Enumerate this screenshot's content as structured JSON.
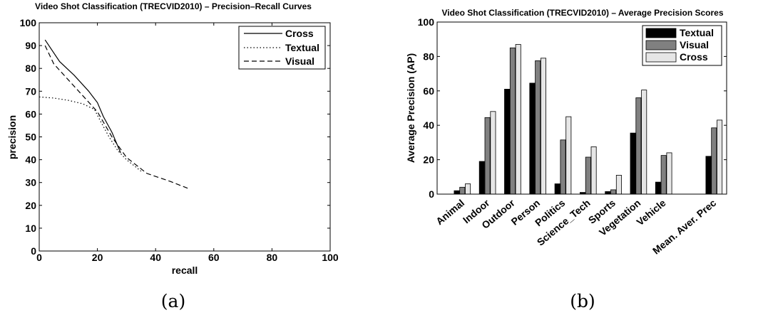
{
  "chart_data": [
    {
      "type": "line",
      "title": "Video Shot Classification (TRECVID2010) – Precision–Recall Curves",
      "xlabel": "recall",
      "ylabel": "precision",
      "xlim": [
        0,
        100
      ],
      "ylim": [
        0,
        100
      ],
      "xticks": [
        "0",
        "20",
        "40",
        "60",
        "80",
        "100"
      ],
      "yticks": [
        "0",
        "10",
        "20",
        "30",
        "40",
        "50",
        "60",
        "70",
        "80",
        "90",
        "100"
      ],
      "legend_position": "top-right",
      "caption": "(a)",
      "series": [
        {
          "name": "Cross",
          "style": "solid",
          "x": [
            2,
            7,
            12,
            17,
            20,
            22,
            25,
            28
          ],
          "y": [
            92.5,
            83,
            77,
            70,
            65,
            59,
            52,
            43
          ]
        },
        {
          "name": "Textual",
          "style": "dotted",
          "x": [
            0,
            5,
            10,
            15,
            19,
            21,
            24,
            27,
            30,
            35
          ],
          "y": [
            67.5,
            67,
            66,
            64.5,
            62,
            57,
            50,
            44,
            40,
            35
          ]
        },
        {
          "name": "Visual",
          "style": "dashed",
          "x": [
            2,
            5,
            10,
            15,
            20,
            25,
            30,
            37,
            45,
            51
          ],
          "y": [
            90,
            82,
            75,
            68,
            61,
            50,
            41,
            34,
            30.5,
            27.5
          ]
        }
      ]
    },
    {
      "type": "bar",
      "title": "Video Shot Classification (TRECVID2010) – Average Precision Scores",
      "xlabel": "",
      "ylabel": "Average Precision (AP)",
      "ylim": [
        0,
        100
      ],
      "yticks": [
        "0",
        "20",
        "40",
        "60",
        "80",
        "100"
      ],
      "legend_position": "top-right",
      "caption": "(b)",
      "categories": [
        "Animal",
        "Indoor",
        "Outdoor",
        "Person",
        "Politics",
        "Science_Tech",
        "Sports",
        "Vegetation",
        "Vehicle",
        "Mean. Aver. Prec"
      ],
      "category_slots": [
        1,
        2,
        3,
        4,
        5,
        6,
        7,
        8,
        9,
        11
      ],
      "series": [
        {
          "name": "Textual",
          "color": "#000000",
          "values": [
            2,
            19,
            61,
            64.5,
            6,
            1,
            1.5,
            35.5,
            7,
            22
          ]
        },
        {
          "name": "Visual",
          "color": "#808080",
          "values": [
            4,
            44.5,
            85,
            77.5,
            31.5,
            21.5,
            2.5,
            56,
            22.5,
            38.5
          ]
        },
        {
          "name": "Cross",
          "color": "#e6e6e6",
          "values": [
            6,
            48,
            87,
            79,
            45,
            27.5,
            11,
            60.5,
            24,
            43
          ]
        }
      ]
    }
  ]
}
